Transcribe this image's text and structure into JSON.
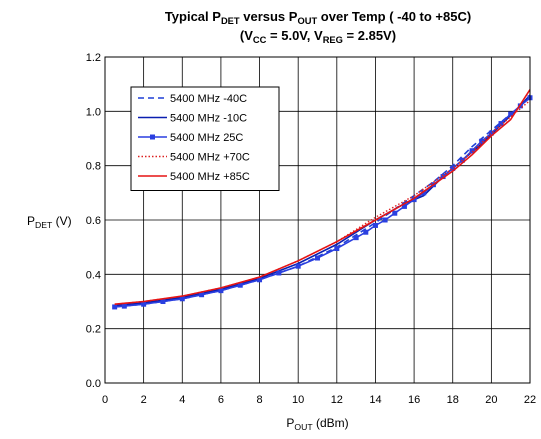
{
  "chart_data": {
    "type": "line",
    "title_parts": [
      {
        "t": "Typical P"
      },
      {
        "t": "DET",
        "sub": true
      },
      {
        "t": " versus P"
      },
      {
        "t": "OUT",
        "sub": true
      },
      {
        "t": " over Temp ( -40 to +85C)"
      }
    ],
    "subtitle_parts": [
      {
        "t": "(V"
      },
      {
        "t": "CC",
        "sub": true
      },
      {
        "t": " = 5.0V, V"
      },
      {
        "t": "REG",
        "sub": true
      },
      {
        "t": " = 2.85V)"
      }
    ],
    "xlabel_parts": [
      {
        "t": "P"
      },
      {
        "t": "OUT",
        "sub": true
      },
      {
        "t": " (dBm)"
      }
    ],
    "ylabel_parts": [
      {
        "t": "P"
      },
      {
        "t": "DET",
        "sub": true
      },
      {
        "t": " (V)"
      }
    ],
    "xlim": [
      0,
      22
    ],
    "ylim": [
      0.0,
      1.2
    ],
    "xticks": [
      0,
      2,
      4,
      6,
      8,
      10,
      12,
      14,
      16,
      18,
      20,
      22
    ],
    "xtick_labels": [
      "0",
      "2",
      "4",
      "6",
      "8",
      "10",
      "12",
      "14",
      "16",
      "18",
      "20",
      "22"
    ],
    "yticks": [
      0.0,
      0.2,
      0.4,
      0.6,
      0.8,
      1.0,
      1.2
    ],
    "ytick_labels": [
      "0.0",
      "0.2",
      "0.4",
      "0.6",
      "0.8",
      "1.0",
      "1.2"
    ],
    "grid": true,
    "legend_position": "top-left",
    "series": [
      {
        "name": "5400 MHz -40C",
        "color": "#1f3fd6",
        "style": "dashed",
        "marker": "none",
        "x": [
          0.5,
          2,
          4,
          6,
          8,
          10,
          12,
          14,
          16,
          17,
          18,
          19,
          20,
          21,
          22
        ],
        "y": [
          0.28,
          0.29,
          0.31,
          0.34,
          0.38,
          0.43,
          0.5,
          0.59,
          0.69,
          0.74,
          0.8,
          0.87,
          0.93,
          0.99,
          1.05
        ]
      },
      {
        "name": "5400 MHz -10C",
        "color": "#0a1fb0",
        "style": "solid",
        "marker": "none",
        "x": [
          0.5,
          2,
          4,
          6,
          8,
          10,
          12,
          14,
          15.5,
          16.5,
          17.5,
          18.5,
          19.5,
          20.5,
          21.5,
          22
        ],
        "y": [
          0.285,
          0.295,
          0.315,
          0.345,
          0.385,
          0.44,
          0.51,
          0.6,
          0.66,
          0.69,
          0.76,
          0.82,
          0.88,
          0.95,
          1.02,
          1.06
        ]
      },
      {
        "name": "5400 MHz 25C",
        "color": "#2a3fe0",
        "style": "solid",
        "marker": "square",
        "x": [
          0.5,
          1,
          2,
          3,
          4,
          5,
          6,
          7,
          8,
          9,
          10,
          11,
          12,
          13,
          13.5,
          14,
          14.5,
          15,
          15.5,
          16,
          16.5,
          17,
          17.5,
          18,
          18.5,
          19,
          19.5,
          20,
          20.5,
          21,
          21.5,
          22
        ],
        "y": [
          0.28,
          0.283,
          0.29,
          0.3,
          0.31,
          0.325,
          0.34,
          0.36,
          0.38,
          0.405,
          0.43,
          0.46,
          0.495,
          0.535,
          0.555,
          0.58,
          0.6,
          0.625,
          0.65,
          0.675,
          0.7,
          0.73,
          0.76,
          0.79,
          0.82,
          0.855,
          0.89,
          0.92,
          0.955,
          0.99,
          1.02,
          1.05
        ]
      },
      {
        "name": "5400 MHz +70C",
        "color": "#dd2020",
        "style": "dotted",
        "marker": "none",
        "x": [
          0.5,
          2,
          4,
          6,
          8,
          10,
          12,
          14,
          16,
          17,
          18,
          19,
          20,
          21,
          22
        ],
        "y": [
          0.29,
          0.3,
          0.32,
          0.35,
          0.39,
          0.45,
          0.52,
          0.61,
          0.69,
          0.74,
          0.79,
          0.85,
          0.92,
          0.98,
          1.04
        ]
      },
      {
        "name": "5400 MHz +85C",
        "color": "#e61414",
        "style": "solid",
        "marker": "none",
        "x": [
          0.5,
          2,
          4,
          6,
          8,
          10,
          12,
          14,
          16,
          17,
          18,
          19,
          20,
          21,
          22
        ],
        "y": [
          0.29,
          0.3,
          0.32,
          0.35,
          0.39,
          0.45,
          0.52,
          0.6,
          0.68,
          0.73,
          0.78,
          0.84,
          0.91,
          0.97,
          1.08
        ]
      }
    ]
  }
}
